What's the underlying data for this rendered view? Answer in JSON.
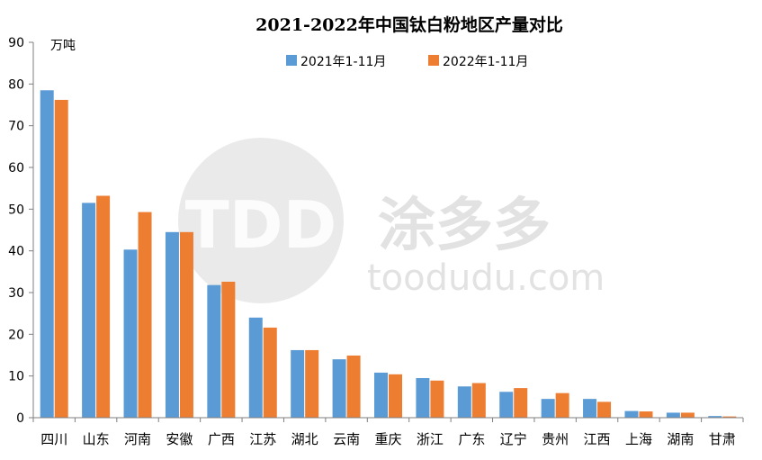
{
  "chart_data": {
    "type": "bar",
    "title": "2021-2022年中国钛白粉地区产量对比",
    "ylabel": "万吨",
    "ylim": [
      0,
      90
    ],
    "yticks": [
      0,
      10,
      20,
      30,
      40,
      50,
      60,
      70,
      80,
      90
    ],
    "categories": [
      "四川",
      "山东",
      "河南",
      "安徽",
      "广西",
      "江苏",
      "湖北",
      "云南",
      "重庆",
      "浙江",
      "广东",
      "辽宁",
      "贵州",
      "江西",
      "上海",
      "湖南",
      "甘肃"
    ],
    "series": [
      {
        "name": "2021年1-11月",
        "color": "#5b9bd5",
        "values": [
          78.5,
          51.5,
          40.3,
          44.5,
          31.8,
          24.0,
          16.2,
          14.0,
          10.8,
          9.5,
          7.5,
          6.2,
          4.5,
          4.5,
          1.6,
          1.2,
          0.4
        ]
      },
      {
        "name": "2022年1-11月",
        "color": "#ed7d31",
        "values": [
          76.2,
          53.2,
          49.3,
          44.5,
          32.6,
          21.6,
          16.2,
          14.9,
          10.4,
          8.9,
          8.3,
          7.1,
          5.9,
          3.8,
          1.5,
          1.2,
          0.3
        ]
      }
    ],
    "legend_position": "top-center",
    "grid": false
  },
  "watermark": {
    "logo_text": "TDD",
    "brand_text": "涂多多",
    "url_text": "toodudu.com"
  }
}
